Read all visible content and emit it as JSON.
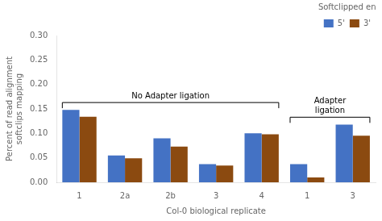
{
  "chart_data": {
    "type": "bar",
    "categories": [
      "1",
      "2a",
      "2b",
      "3",
      "4",
      "1",
      "3"
    ],
    "series": [
      {
        "name": "5'",
        "color": "#4472c4",
        "values": [
          0.148,
          0.055,
          0.09,
          0.037,
          0.1,
          0.037,
          0.118
        ]
      },
      {
        "name": "3'",
        "color": "#8B4A10",
        "values": [
          0.134,
          0.049,
          0.073,
          0.034,
          0.098,
          0.01,
          0.095
        ]
      }
    ],
    "xlabel": "Col-0 biological replicate",
    "ylabel": "Percent of read alignment\nsoftclips mapping",
    "ylim": [
      0,
      0.3
    ],
    "yticks": [
      {
        "value": 0,
        "label": "0.00"
      },
      {
        "value": 0.05,
        "label": "0.05"
      },
      {
        "value": 0.1,
        "label": "0.10"
      },
      {
        "value": 0.15,
        "label": "0.15"
      },
      {
        "value": 0.2,
        "label": "0.20"
      },
      {
        "value": 0.25,
        "label": "0.25"
      },
      {
        "value": 0.3,
        "label": "0.30"
      }
    ],
    "legend_title": "Softclipped end",
    "legend": "upper right",
    "grid": false,
    "annotations": [
      {
        "text": "No Adapter ligation",
        "y": 0.163,
        "span": [
          0,
          4
        ]
      },
      {
        "text": "Adapter\nligation",
        "y": 0.133,
        "span": [
          5,
          6
        ]
      }
    ]
  }
}
